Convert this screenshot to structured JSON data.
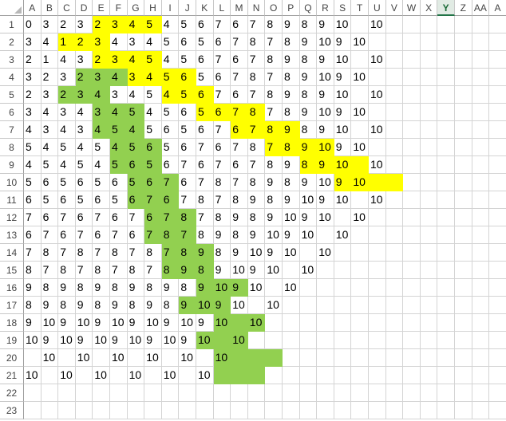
{
  "columns": [
    "A",
    "B",
    "C",
    "D",
    "E",
    "F",
    "G",
    "H",
    "I",
    "J",
    "K",
    "L",
    "M",
    "N",
    "O",
    "P",
    "Q",
    "R",
    "S",
    "T",
    "U",
    "V",
    "W",
    "X",
    "Y",
    "Z",
    "AA",
    "A"
  ],
  "selected_column": "Y",
  "rows": [
    "1",
    "2",
    "3",
    "4",
    "5",
    "6",
    "7",
    "8",
    "9",
    "10",
    "11",
    "12",
    "13",
    "14",
    "15",
    "16",
    "17",
    "18",
    "19",
    "20",
    "21",
    "22",
    "23"
  ],
  "colors": {
    "yellow": "#ffff00",
    "green": "#92d050",
    "selected_header": "#217346"
  },
  "cells": [
    [
      "0",
      "3",
      "2",
      "3",
      "2",
      "3",
      "4",
      "5",
      "4",
      "5",
      "6",
      "7",
      "6",
      "7",
      "8",
      "9",
      "8",
      "9",
      "10",
      "",
      "10"
    ],
    [
      "3",
      "4",
      "1",
      "2",
      "3",
      "4",
      "3",
      "4",
      "5",
      "6",
      "5",
      "6",
      "7",
      "8",
      "7",
      "8",
      "9",
      "10",
      "9",
      "10",
      ""
    ],
    [
      "2",
      "1",
      "4",
      "3",
      "2",
      "3",
      "4",
      "5",
      "4",
      "5",
      "6",
      "7",
      "6",
      "7",
      "8",
      "9",
      "8",
      "9",
      "10",
      "",
      "10"
    ],
    [
      "3",
      "2",
      "3",
      "2",
      "3",
      "4",
      "3",
      "4",
      "5",
      "6",
      "5",
      "6",
      "7",
      "8",
      "7",
      "8",
      "9",
      "10",
      "9",
      "10",
      ""
    ],
    [
      "2",
      "3",
      "2",
      "3",
      "4",
      "3",
      "4",
      "5",
      "4",
      "5",
      "6",
      "7",
      "6",
      "7",
      "8",
      "9",
      "8",
      "9",
      "10",
      "",
      "10"
    ],
    [
      "3",
      "4",
      "3",
      "4",
      "3",
      "4",
      "5",
      "4",
      "5",
      "6",
      "5",
      "6",
      "7",
      "8",
      "7",
      "8",
      "9",
      "10",
      "9",
      "10",
      ""
    ],
    [
      "4",
      "3",
      "4",
      "3",
      "4",
      "5",
      "4",
      "5",
      "6",
      "5",
      "6",
      "7",
      "6",
      "7",
      "8",
      "9",
      "8",
      "9",
      "10",
      "",
      "10"
    ],
    [
      "5",
      "4",
      "5",
      "4",
      "5",
      "4",
      "5",
      "6",
      "5",
      "6",
      "7",
      "6",
      "7",
      "8",
      "7",
      "8",
      "9",
      "10",
      "9",
      "10",
      ""
    ],
    [
      "4",
      "5",
      "4",
      "5",
      "4",
      "5",
      "6",
      "5",
      "6",
      "7",
      "6",
      "7",
      "6",
      "7",
      "8",
      "9",
      "8",
      "9",
      "10",
      "",
      "10"
    ],
    [
      "5",
      "6",
      "5",
      "6",
      "5",
      "6",
      "5",
      "6",
      "7",
      "6",
      "7",
      "8",
      "7",
      "8",
      "9",
      "8",
      "9",
      "10",
      "9",
      "10",
      ""
    ],
    [
      "6",
      "5",
      "6",
      "5",
      "6",
      "5",
      "6",
      "7",
      "6",
      "7",
      "8",
      "7",
      "8",
      "9",
      "8",
      "9",
      "10",
      "9",
      "10",
      "",
      "10"
    ],
    [
      "7",
      "6",
      "7",
      "6",
      "7",
      "6",
      "7",
      "6",
      "7",
      "8",
      "7",
      "8",
      "9",
      "8",
      "9",
      "10",
      "9",
      "10",
      "",
      "10",
      ""
    ],
    [
      "6",
      "7",
      "6",
      "7",
      "6",
      "7",
      "6",
      "7",
      "8",
      "7",
      "8",
      "9",
      "8",
      "9",
      "10",
      "9",
      "10",
      "",
      "10",
      "",
      ""
    ],
    [
      "7",
      "8",
      "7",
      "8",
      "7",
      "8",
      "7",
      "8",
      "7",
      "8",
      "9",
      "8",
      "9",
      "10",
      "9",
      "10",
      "",
      "10",
      "",
      "",
      ""
    ],
    [
      "8",
      "7",
      "8",
      "7",
      "8",
      "7",
      "8",
      "7",
      "8",
      "9",
      "8",
      "9",
      "10",
      "9",
      "10",
      "",
      "10",
      "",
      "",
      "",
      ""
    ],
    [
      "9",
      "8",
      "9",
      "8",
      "9",
      "8",
      "9",
      "8",
      "9",
      "8",
      "9",
      "10",
      "9",
      "10",
      "",
      "10",
      "",
      "",
      "",
      "",
      ""
    ],
    [
      "8",
      "9",
      "8",
      "9",
      "8",
      "9",
      "8",
      "9",
      "8",
      "9",
      "10",
      "9",
      "10",
      "",
      "10",
      "",
      "",
      "",
      "",
      "",
      ""
    ],
    [
      "9",
      "10",
      "9",
      "10",
      "9",
      "10",
      "9",
      "10",
      "9",
      "10",
      "9",
      "10",
      "",
      "10",
      "",
      "",
      "",
      "",
      "",
      "",
      ""
    ],
    [
      "10",
      "9",
      "10",
      "9",
      "10",
      "9",
      "10",
      "9",
      "10",
      "9",
      "10",
      "",
      "10",
      "",
      "",
      "",
      "",
      "",
      "",
      "",
      ""
    ],
    [
      "",
      "10",
      "",
      "10",
      "",
      "10",
      "",
      "10",
      "",
      "10",
      "",
      "10",
      "",
      "",
      "",
      "",
      "",
      "",
      "",
      "",
      ""
    ],
    [
      "10",
      "",
      "10",
      "",
      "10",
      "",
      "10",
      "",
      "10",
      "",
      "10",
      "",
      "",
      "",
      "",
      "",
      "",
      "",
      "",
      "",
      ""
    ],
    [
      "",
      "",
      "",
      "",
      "",
      "",
      "",
      "",
      "",
      "",
      "",
      "",
      "",
      "",
      "",
      "",
      "",
      "",
      "",
      "",
      ""
    ],
    [
      "",
      "",
      "",
      "",
      "",
      "",
      "",
      "",
      "",
      "",
      "",
      "",
      "",
      "",
      "",
      "",
      "",
      "",
      "",
      "",
      ""
    ]
  ],
  "fills": {
    "yellow": [
      [
        0,
        [
          4,
          5,
          6,
          7
        ]
      ],
      [
        1,
        [
          2,
          3,
          4
        ]
      ],
      [
        2,
        [
          4,
          5,
          6,
          7
        ]
      ],
      [
        3,
        [
          6,
          7,
          8,
          9
        ]
      ],
      [
        4,
        [
          8,
          9,
          10
        ]
      ],
      [
        5,
        [
          10,
          11,
          12,
          13
        ]
      ],
      [
        6,
        [
          12,
          13,
          14,
          15
        ]
      ],
      [
        7,
        [
          14,
          15,
          16,
          17
        ]
      ],
      [
        8,
        [
          16,
          17,
          18,
          19
        ]
      ],
      [
        9,
        [
          18,
          19,
          20,
          21
        ]
      ]
    ],
    "green": [
      [
        3,
        [
          3,
          4,
          5
        ]
      ],
      [
        4,
        [
          2,
          3,
          4
        ]
      ],
      [
        5,
        [
          4,
          5,
          6
        ]
      ],
      [
        6,
        [
          4,
          5,
          6
        ]
      ],
      [
        7,
        [
          5,
          6,
          7
        ]
      ],
      [
        8,
        [
          5,
          6,
          7
        ]
      ],
      [
        9,
        [
          6,
          7,
          8
        ]
      ],
      [
        10,
        [
          6,
          7,
          8
        ]
      ],
      [
        11,
        [
          7,
          8,
          9
        ]
      ],
      [
        12,
        [
          7,
          8,
          9
        ]
      ],
      [
        13,
        [
          8,
          9,
          10
        ]
      ],
      [
        14,
        [
          8,
          9,
          10
        ]
      ],
      [
        15,
        [
          10,
          11,
          12
        ]
      ],
      [
        16,
        [
          9,
          10,
          11
        ]
      ],
      [
        17,
        [
          11,
          12,
          13
        ]
      ],
      [
        18,
        [
          10,
          11,
          12
        ]
      ],
      [
        19,
        [
          11,
          12,
          13,
          14
        ]
      ],
      [
        20,
        [
          11,
          12,
          13
        ]
      ]
    ]
  }
}
